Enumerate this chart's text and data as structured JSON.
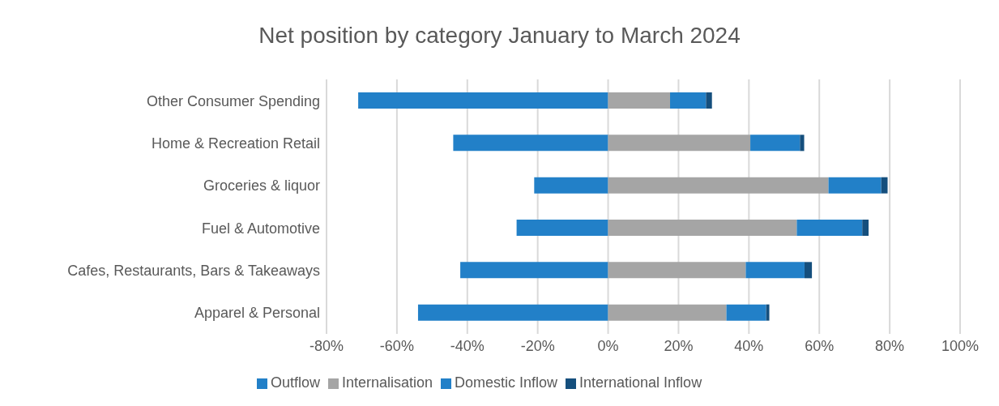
{
  "chart_data": {
    "type": "bar",
    "orientation": "horizontal",
    "stacked": true,
    "title": "Net position by category January to March 2024",
    "categories": [
      "Other Consumer Spending",
      "Home & Recreation Retail",
      "Groceries & liquor",
      "Fuel & Automotive",
      "Cafes, Restaurants, Bars & Takeaways",
      "Apparel & Personal"
    ],
    "series": [
      {
        "name": "Outflow",
        "color": "#2280c8",
        "values": [
          -71,
          -44,
          -21,
          -26,
          -42,
          -54
        ]
      },
      {
        "name": "Internalisation",
        "color": "#a5a5a5",
        "values": [
          17.6,
          40.4,
          62.6,
          53.6,
          39.1,
          33.6
        ]
      },
      {
        "name": "Domestic Inflow",
        "color": "#2280c8",
        "values": [
          10.2,
          14.1,
          15.0,
          18.6,
          16.7,
          11.3
        ]
      },
      {
        "name": "International Inflow",
        "color": "#154f7d",
        "values": [
          1.7,
          1.2,
          1.8,
          1.8,
          2.1,
          0.9
        ]
      }
    ],
    "xlim": [
      -80,
      100
    ],
    "xticks": [
      {
        "value": -80,
        "label": "-80%"
      },
      {
        "value": -60,
        "label": "-60%"
      },
      {
        "value": -40,
        "label": "-40%"
      },
      {
        "value": -20,
        "label": "-20%"
      },
      {
        "value": 0,
        "label": "0%"
      },
      {
        "value": 20,
        "label": "20%"
      },
      {
        "value": 40,
        "label": "40%"
      },
      {
        "value": 60,
        "label": "60%"
      },
      {
        "value": 80,
        "label": "80%"
      },
      {
        "value": 100,
        "label": "100%"
      }
    ],
    "grid": "x",
    "legend": "bottom"
  }
}
